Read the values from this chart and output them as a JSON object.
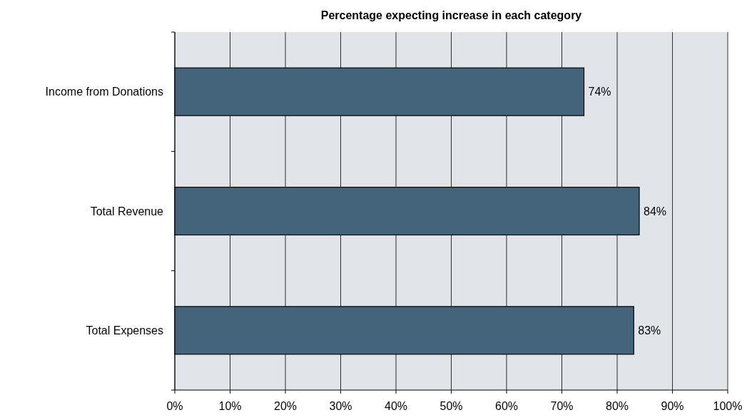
{
  "chart_data": {
    "type": "bar",
    "orientation": "horizontal",
    "title": "Percentage expecting increase in each category",
    "categories": [
      "Income from Donations",
      "Total Revenue",
      "Total Expenses"
    ],
    "values": [
      74,
      84,
      83
    ],
    "color": "#44647c",
    "value_labels": [
      "74%",
      "84%",
      "83%"
    ],
    "xlim": [
      0,
      100
    ],
    "xticks": [
      {
        "value": 0,
        "label": "0%"
      },
      {
        "value": 10,
        "label": "10%"
      },
      {
        "value": 20,
        "label": "20%"
      },
      {
        "value": 30,
        "label": "30%"
      },
      {
        "value": 40,
        "label": "40%"
      },
      {
        "value": 50,
        "label": "50%"
      },
      {
        "value": 60,
        "label": "60%"
      },
      {
        "value": 70,
        "label": "70%"
      },
      {
        "value": 80,
        "label": "80%"
      },
      {
        "value": 90,
        "label": "90%"
      },
      {
        "value": 100,
        "label": "100%"
      }
    ],
    "grid": "x"
  }
}
